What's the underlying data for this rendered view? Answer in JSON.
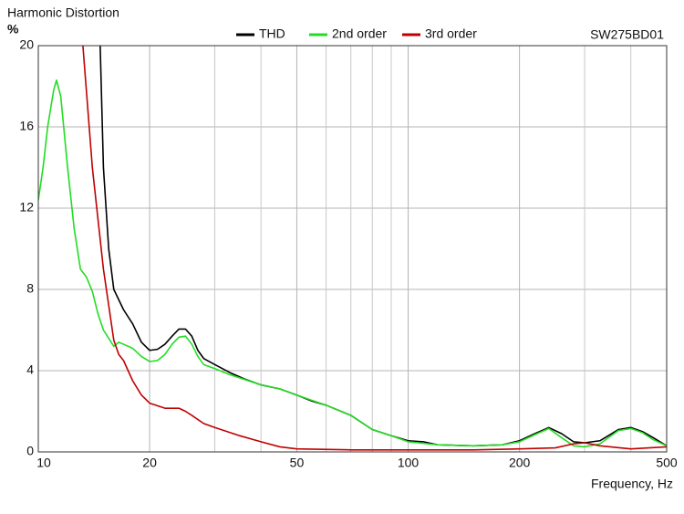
{
  "chart_data": {
    "type": "line",
    "title": "Harmonic Distortion",
    "y_label": "%",
    "x_label": "Frequency, Hz",
    "model": "SW275BD01",
    "log_x": true,
    "grid": true,
    "xlim": [
      10,
      500
    ],
    "ylim": [
      0,
      20
    ],
    "xticks": [
      10,
      20,
      50,
      100,
      200,
      500
    ],
    "xgrid_minor": [
      30,
      40,
      60,
      70,
      80,
      90,
      300,
      400
    ],
    "yticks": [
      0,
      4,
      8,
      12,
      16,
      20
    ],
    "series": [
      {
        "name": "THD",
        "color": "#000000",
        "x": [
          14.7,
          15,
          15.5,
          16,
          17,
          18,
          19,
          20,
          21,
          22,
          23,
          24,
          25,
          26,
          27,
          28,
          30,
          33,
          36,
          40,
          45,
          50,
          55,
          60,
          70,
          80,
          90,
          100,
          110,
          120,
          150,
          180,
          200,
          220,
          240,
          260,
          280,
          300,
          330,
          370,
          400,
          430,
          460,
          500
        ],
        "values": [
          20,
          14,
          10,
          8,
          7,
          6.3,
          5.4,
          5.0,
          5.05,
          5.3,
          5.7,
          6.05,
          6.05,
          5.7,
          5.0,
          4.6,
          4.3,
          3.9,
          3.6,
          3.3,
          3.1,
          2.8,
          2.5,
          2.3,
          1.8,
          1.1,
          0.8,
          0.55,
          0.5,
          0.35,
          0.3,
          0.35,
          0.55,
          0.9,
          1.2,
          0.9,
          0.5,
          0.45,
          0.55,
          1.1,
          1.2,
          1.0,
          0.7,
          0.3
        ]
      },
      {
        "name": "2nd order",
        "color": "#22dd22",
        "x": [
          10,
          10.3,
          10.6,
          11,
          11.2,
          11.5,
          12,
          12.5,
          13,
          13.5,
          14,
          14.5,
          15,
          16,
          16.5,
          17,
          18,
          19,
          20,
          21,
          22,
          23,
          24,
          25,
          26,
          27,
          28,
          30,
          33,
          40,
          45,
          50,
          60,
          70,
          80,
          90,
          100,
          120,
          150,
          180,
          200,
          220,
          240,
          260,
          280,
          300,
          330,
          370,
          400,
          430,
          460,
          500
        ],
        "values": [
          12.4,
          14,
          16,
          17.8,
          18.3,
          17.5,
          14,
          11,
          9,
          8.6,
          7.9,
          6.8,
          6,
          5.2,
          5.4,
          5.3,
          5.1,
          4.7,
          4.45,
          4.5,
          4.8,
          5.3,
          5.65,
          5.7,
          5.3,
          4.7,
          4.3,
          4.1,
          3.8,
          3.3,
          3.1,
          2.8,
          2.3,
          1.8,
          1.1,
          0.8,
          0.5,
          0.35,
          0.3,
          0.35,
          0.5,
          0.85,
          1.15,
          0.7,
          0.3,
          0.25,
          0.4,
          1.05,
          1.15,
          0.95,
          0.6,
          0.3
        ]
      },
      {
        "name": "3rd order",
        "color": "#c00000",
        "x": [
          13.2,
          14,
          15,
          16,
          16.5,
          17,
          18,
          19,
          20,
          22,
          24,
          25,
          26,
          28,
          30,
          35,
          40,
          45,
          50,
          70,
          100,
          150,
          200,
          250,
          280,
          300,
          330,
          400,
          500
        ],
        "values": [
          20,
          14,
          9,
          5.5,
          4.8,
          4.5,
          3.5,
          2.8,
          2.4,
          2.15,
          2.15,
          2.0,
          1.8,
          1.4,
          1.2,
          0.8,
          0.5,
          0.25,
          0.15,
          0.1,
          0.1,
          0.1,
          0.15,
          0.2,
          0.4,
          0.45,
          0.3,
          0.15,
          0.25
        ]
      }
    ]
  }
}
